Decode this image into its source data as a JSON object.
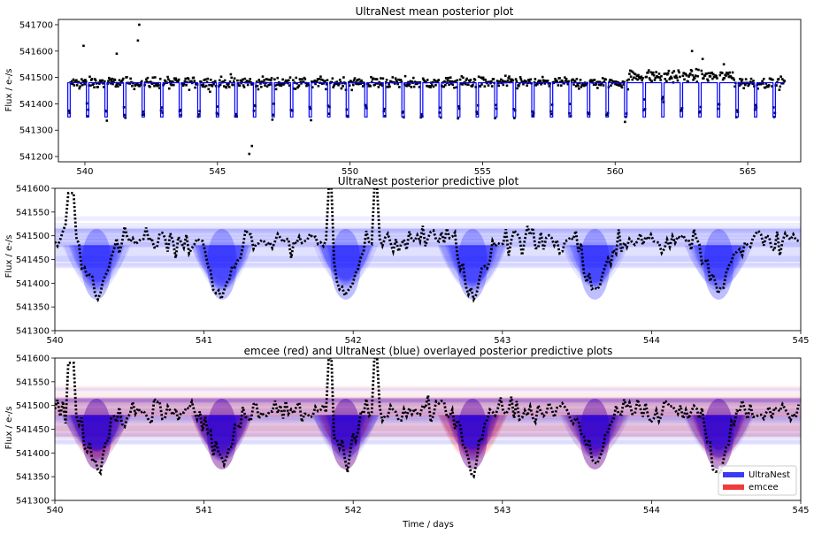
{
  "colors": {
    "blue": "#0000ff",
    "red": "#ff0000",
    "data": "#000000",
    "legend_blue": "#3b3bf5",
    "legend_red": "#f03b3b"
  },
  "chart_data": [
    {
      "type": "scatter",
      "title": "UltraNest mean posterior plot",
      "xlabel": "",
      "ylabel": "Flux / e-/s",
      "xlim": [
        539.0,
        567.0
      ],
      "ylim": [
        541180,
        541720
      ],
      "xticks": [
        540,
        545,
        550,
        555,
        560,
        565
      ],
      "yticks": [
        541200,
        541300,
        541400,
        541500,
        541600,
        541700
      ],
      "grid": false,
      "series": [
        {
          "kind": "points",
          "color": "#000000",
          "baseline": 541480,
          "x_range": [
            539.4,
            566.4
          ],
          "outliers": [
            [
              539.95,
              541620
            ],
            [
              541.2,
              541590
            ],
            [
              542.05,
              541700
            ],
            [
              542.0,
              541640
            ],
            [
              546.2,
              541210
            ],
            [
              546.3,
              541240
            ],
            [
              562.9,
              541600
            ],
            [
              563.3,
              541570
            ],
            [
              564.1,
              541550
            ]
          ]
        },
        {
          "kind": "model",
          "color": "#0000ff",
          "baseline": 541480,
          "transit_depth_flux": 541350,
          "period_days": 0.7,
          "first_transit": 539.4,
          "transit_width_days": 0.09
        }
      ]
    },
    {
      "type": "line",
      "title": "UltraNest posterior predictive plot",
      "xlabel": "",
      "ylabel": "Flux / e-/s",
      "xlim": [
        540,
        545
      ],
      "ylim": [
        541300,
        541600
      ],
      "xticks": [
        540,
        541,
        542,
        543,
        544,
        545
      ],
      "yticks": [
        541300,
        541350,
        541400,
        541450,
        541500,
        541550,
        541600
      ],
      "grid": false,
      "series": [
        {
          "kind": "posterior_band",
          "color": "#0000ff",
          "baseline": 541480,
          "transit_centers": [
            540.28,
            541.12,
            541.95,
            542.8,
            543.62,
            544.45
          ],
          "transit_min": 541350
        },
        {
          "kind": "data",
          "color": "#000000",
          "baseline": 541490
        }
      ]
    },
    {
      "type": "line",
      "title": "emcee (red) and UltraNest (blue) overlayed posterior predictive plots",
      "xlabel": "Time / days",
      "ylabel": "Flux / e-/s",
      "xlim": [
        540,
        545
      ],
      "ylim": [
        541300,
        541600
      ],
      "xticks": [
        540,
        541,
        542,
        543,
        544,
        545
      ],
      "yticks": [
        541300,
        541350,
        541400,
        541450,
        541500,
        541550,
        541600
      ],
      "grid": false,
      "legend": {
        "position": "bottom-right",
        "entries": [
          {
            "name": "UltraNest",
            "color": "#3b3bf5"
          },
          {
            "name": "emcee",
            "color": "#f03b3b"
          }
        ]
      },
      "series": [
        {
          "kind": "posterior_band",
          "color": "#ff0000",
          "baseline": 541480,
          "transit_centers": [
            540.28,
            541.12,
            541.95,
            542.8,
            543.62,
            544.45
          ],
          "transit_min": 541350
        },
        {
          "kind": "posterior_band",
          "color": "#0000ff",
          "baseline": 541480,
          "transit_centers": [
            540.28,
            541.12,
            541.95,
            542.8,
            543.62,
            544.45
          ],
          "transit_min": 541350
        },
        {
          "kind": "data",
          "color": "#000000",
          "baseline": 541490
        }
      ]
    }
  ],
  "panels": [
    {
      "title": "UltraNest mean posterior plot",
      "ylabel": "Flux / e-/s",
      "xlabel": ""
    },
    {
      "title": "UltraNest posterior predictive plot",
      "ylabel": "Flux / e-/s",
      "xlabel": ""
    },
    {
      "title": "emcee (red) and UltraNest (blue) overlayed posterior predictive plots",
      "ylabel": "Flux / e-/s",
      "xlabel": "Time / days"
    }
  ],
  "legend": {
    "ultranest_label": "UltraNest",
    "emcee_label": "emcee"
  }
}
